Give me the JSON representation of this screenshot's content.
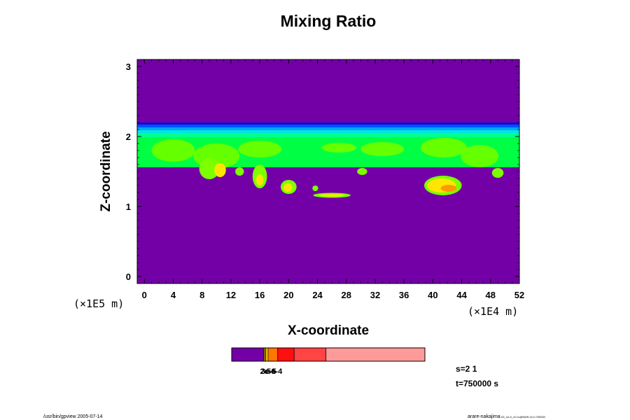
{
  "chart_data": {
    "type": "heatmap",
    "title": "Mixing Ratio",
    "xlabel": "X-coordinate",
    "ylabel": "Z-coordinate",
    "x_unit": "(×1E4 m)",
    "y_unit": "(×1E5 m)",
    "xlim": [
      -1,
      52
    ],
    "ylim": [
      -0.1,
      3.1
    ],
    "x_ticks": [
      "0",
      "4",
      "8",
      "12",
      "16",
      "20",
      "24",
      "28",
      "32",
      "36",
      "40",
      "44",
      "48",
      "52"
    ],
    "y_ticks": [
      "0",
      "1",
      "2",
      "3"
    ],
    "background_color": "#7300a6",
    "layer_bands": [
      {
        "z": [
          2.17,
          2.2
        ],
        "color": "#0b0bd6"
      },
      {
        "z": [
          2.13,
          2.17
        ],
        "color": "#0050ff"
      },
      {
        "z": [
          2.09,
          2.13
        ],
        "color": "#00a6ff"
      },
      {
        "z": [
          2.05,
          2.09
        ],
        "color": "#00e3e3"
      },
      {
        "z": [
          1.99,
          2.05
        ],
        "color": "#00ff8c"
      },
      {
        "z": [
          1.56,
          1.99
        ],
        "color": "#00ff44"
      }
    ],
    "features": [
      {
        "x": 4,
        "z": 1.8,
        "rx": 3,
        "rz": 0.16,
        "color": "#66ff00"
      },
      {
        "x": 10,
        "z": 1.72,
        "rx": 3.2,
        "rz": 0.18,
        "color": "#66ff00"
      },
      {
        "x": 16,
        "z": 1.82,
        "rx": 3,
        "rz": 0.12,
        "color": "#66ff00"
      },
      {
        "x": 27,
        "z": 1.84,
        "rx": 2.4,
        "rz": 0.07,
        "color": "#66ff00"
      },
      {
        "x": 33,
        "z": 1.82,
        "rx": 3,
        "rz": 0.1,
        "color": "#66ff00"
      },
      {
        "x": 41.5,
        "z": 1.84,
        "rx": 3.2,
        "rz": 0.14,
        "color": "#66ff00"
      },
      {
        "x": 46.5,
        "z": 1.72,
        "rx": 2.6,
        "rz": 0.16,
        "color": "#66ff00"
      },
      {
        "x": 9,
        "z": 1.54,
        "rx": 1.4,
        "rz": 0.15,
        "color": "#7cff00"
      },
      {
        "x": 10.5,
        "z": 1.52,
        "rx": 0.8,
        "rz": 0.1,
        "color": "#ffe600"
      },
      {
        "x": 13.2,
        "z": 1.5,
        "rx": 0.6,
        "rz": 0.06,
        "color": "#7cff00"
      },
      {
        "x": 16,
        "z": 1.43,
        "rx": 1,
        "rz": 0.17,
        "color": "#7cff00"
      },
      {
        "x": 16,
        "z": 1.38,
        "rx": 0.5,
        "rz": 0.08,
        "color": "#ffe600"
      },
      {
        "x": 20,
        "z": 1.28,
        "rx": 1.1,
        "rz": 0.1,
        "color": "#7cff00"
      },
      {
        "x": 19.9,
        "z": 1.27,
        "rx": 0.6,
        "rz": 0.06,
        "color": "#ffe600"
      },
      {
        "x": 23.7,
        "z": 1.26,
        "rx": 0.4,
        "rz": 0.04,
        "color": "#7cff00"
      },
      {
        "x": 26,
        "z": 1.16,
        "rx": 2.6,
        "rz": 0.035,
        "color": "#7cff00"
      },
      {
        "x": 26,
        "z": 1.16,
        "rx": 1.8,
        "rz": 0.018,
        "color": "#ffe600"
      },
      {
        "x": 30.2,
        "z": 1.5,
        "rx": 0.7,
        "rz": 0.05,
        "color": "#7cff00"
      },
      {
        "x": 41.4,
        "z": 1.3,
        "rx": 2.6,
        "rz": 0.14,
        "color": "#7cff00"
      },
      {
        "x": 41.2,
        "z": 1.3,
        "rx": 2,
        "rz": 0.1,
        "color": "#ffe600"
      },
      {
        "x": 42.2,
        "z": 1.26,
        "rx": 1.1,
        "rz": 0.05,
        "color": "#ff9a00"
      },
      {
        "x": 49,
        "z": 1.48,
        "rx": 0.8,
        "rz": 0.07,
        "color": "#7cff00"
      }
    ],
    "colorbar": {
      "segments": [
        {
          "fraction": 0.165,
          "color": "#7300a6"
        },
        {
          "fraction": 0.006,
          "color": "#c8a000"
        },
        {
          "fraction": 0.006,
          "color": "#ff9a00"
        },
        {
          "fraction": 0.011,
          "color": "#ffe600"
        },
        {
          "fraction": 0.05,
          "color": "#ff7700"
        },
        {
          "fraction": 0.085,
          "color": "#ff1010"
        },
        {
          "fraction": 0.165,
          "color": "#ff4444"
        },
        {
          "fraction": 0.512,
          "color": "#ff9a9a"
        }
      ],
      "labels": [
        "2e-6",
        "3e-5",
        "5e-4"
      ]
    },
    "info_lines": [
      "s=2 1",
      "t=750000 s"
    ],
    "footer_left": "/usr/bin/gpview 2005-07-14",
    "footer_right": "arare-nakajima",
    "footer_right_small": "-03_1e-5_v2.nc@MixR,x2,t=750000"
  }
}
